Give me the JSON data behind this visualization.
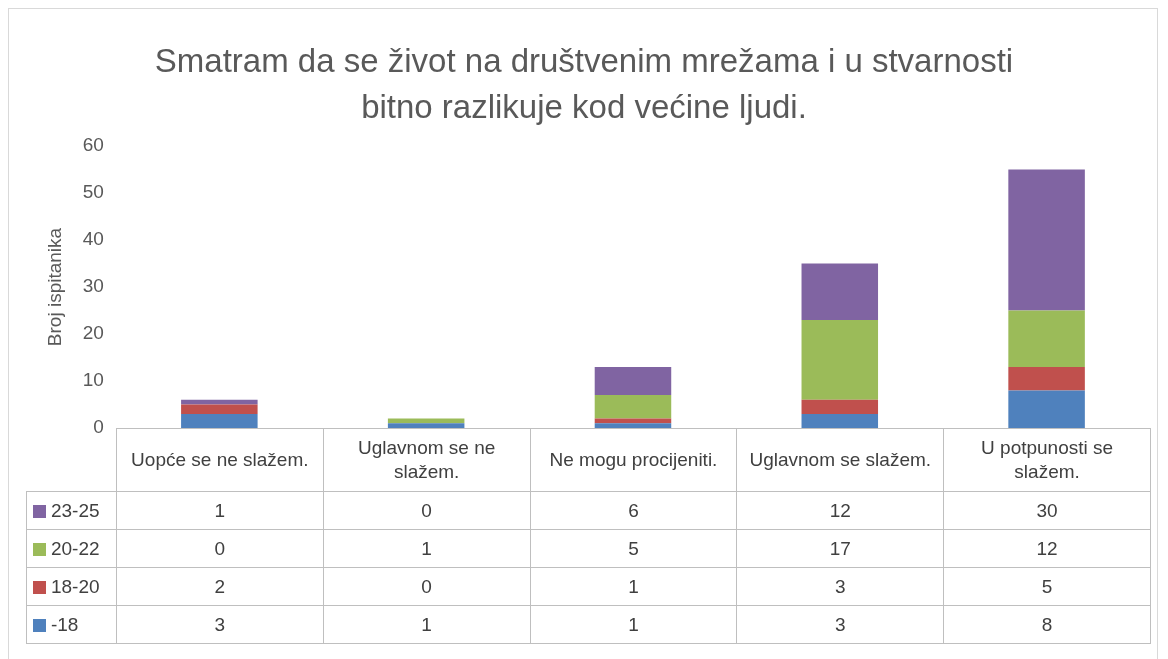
{
  "chart_data": {
    "type": "bar",
    "title": "Smatram da se život na društvenim mrežama i u stvarnosti bitno razlikuje kod većine ljudi.",
    "ylabel": "Broj ispitanika",
    "categories": [
      "Uopće se ne slažem.",
      "Uglavnom se ne slažem.",
      "Ne mogu procijeniti.",
      "Uglavnom se slažem.",
      "U potpunosti se slažem."
    ],
    "series": [
      {
        "name": "-18",
        "color": "#4f81bd",
        "values": [
          3,
          1,
          1,
          3,
          8
        ]
      },
      {
        "name": "18-20",
        "color": "#c0504d",
        "values": [
          2,
          0,
          1,
          3,
          5
        ]
      },
      {
        "name": "20-22",
        "color": "#9bbb59",
        "values": [
          0,
          1,
          5,
          17,
          12
        ]
      },
      {
        "name": "23-25",
        "color": "#8064a2",
        "values": [
          1,
          0,
          6,
          12,
          30
        ]
      }
    ],
    "stacked": true,
    "ylim": [
      0,
      60
    ],
    "yticks": [
      0,
      10,
      20,
      30,
      40,
      50,
      60
    ],
    "data_labels": true,
    "legend": "bottom"
  }
}
